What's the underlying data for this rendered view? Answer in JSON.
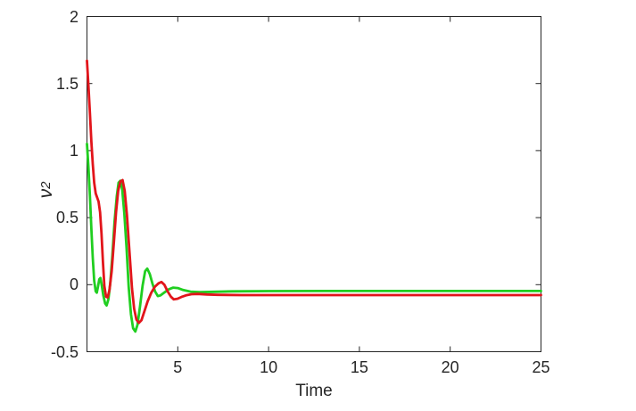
{
  "figure": {
    "background": "#ffffff",
    "axis_color": "#262626",
    "text_color": "#262626"
  },
  "chart_data": {
    "type": "line",
    "title": "",
    "xlabel": "Time",
    "ylabel": "ν",
    "ylabel_sub": "2",
    "xlim": [
      0,
      25
    ],
    "ylim": [
      -0.5,
      2
    ],
    "x_ticks": [
      5,
      10,
      15,
      20,
      25
    ],
    "y_ticks": [
      -0.5,
      0,
      0.5,
      1,
      1.5,
      2
    ],
    "grid": false,
    "legend": "none",
    "tick_style": "inward, mirrored on all four box edges",
    "series": [
      {
        "name": "green",
        "color": "#20ce20",
        "line_width": 2.8,
        "points": [
          [
            0,
            1.05
          ],
          [
            0.08,
            0.88
          ],
          [
            0.16,
            0.66
          ],
          [
            0.24,
            0.42
          ],
          [
            0.32,
            0.2
          ],
          [
            0.4,
            0.03
          ],
          [
            0.48,
            -0.05
          ],
          [
            0.54,
            -0.06
          ],
          [
            0.6,
            -0.02
          ],
          [
            0.68,
            0.04
          ],
          [
            0.74,
            0.05
          ],
          [
            0.82,
            -0.01
          ],
          [
            0.9,
            -0.08
          ],
          [
            1.0,
            -0.14
          ],
          [
            1.08,
            -0.155
          ],
          [
            1.18,
            -0.11
          ],
          [
            1.28,
            0.01
          ],
          [
            1.4,
            0.22
          ],
          [
            1.52,
            0.47
          ],
          [
            1.64,
            0.66
          ],
          [
            1.74,
            0.76
          ],
          [
            1.84,
            0.775
          ],
          [
            1.94,
            0.71
          ],
          [
            2.06,
            0.53
          ],
          [
            2.18,
            0.27
          ],
          [
            2.3,
            -0.02
          ],
          [
            2.42,
            -0.22
          ],
          [
            2.54,
            -0.325
          ],
          [
            2.66,
            -0.35
          ],
          [
            2.78,
            -0.3
          ],
          [
            2.92,
            -0.16
          ],
          [
            3.06,
            -0.01
          ],
          [
            3.2,
            0.1
          ],
          [
            3.32,
            0.12
          ],
          [
            3.46,
            0.08
          ],
          [
            3.6,
            0.01
          ],
          [
            3.75,
            -0.05
          ],
          [
            3.9,
            -0.085
          ],
          [
            4.05,
            -0.08
          ],
          [
            4.25,
            -0.06
          ],
          [
            4.5,
            -0.035
          ],
          [
            4.75,
            -0.022
          ],
          [
            5.0,
            -0.025
          ],
          [
            5.3,
            -0.04
          ],
          [
            5.7,
            -0.052
          ],
          [
            6.2,
            -0.056
          ],
          [
            7.0,
            -0.053
          ],
          [
            8.0,
            -0.05
          ],
          [
            10,
            -0.048
          ],
          [
            13,
            -0.047
          ],
          [
            17,
            -0.047
          ],
          [
            21,
            -0.047
          ],
          [
            25,
            -0.047
          ]
        ]
      },
      {
        "name": "red",
        "color": "#e2151b",
        "line_width": 2.8,
        "points": [
          [
            0,
            1.67
          ],
          [
            0.08,
            1.49
          ],
          [
            0.16,
            1.28
          ],
          [
            0.24,
            1.07
          ],
          [
            0.32,
            0.9
          ],
          [
            0.4,
            0.76
          ],
          [
            0.48,
            0.68
          ],
          [
            0.56,
            0.65
          ],
          [
            0.64,
            0.62
          ],
          [
            0.72,
            0.54
          ],
          [
            0.8,
            0.38
          ],
          [
            0.88,
            0.17
          ],
          [
            0.96,
            -0.01
          ],
          [
            1.05,
            -0.09
          ],
          [
            1.14,
            -0.095
          ],
          [
            1.24,
            -0.04
          ],
          [
            1.36,
            0.1
          ],
          [
            1.48,
            0.31
          ],
          [
            1.6,
            0.54
          ],
          [
            1.72,
            0.7
          ],
          [
            1.84,
            0.77
          ],
          [
            1.96,
            0.78
          ],
          [
            2.08,
            0.7
          ],
          [
            2.2,
            0.52
          ],
          [
            2.34,
            0.25
          ],
          [
            2.48,
            -0.03
          ],
          [
            2.6,
            -0.18
          ],
          [
            2.72,
            -0.26
          ],
          [
            2.86,
            -0.285
          ],
          [
            3.0,
            -0.265
          ],
          [
            3.16,
            -0.2
          ],
          [
            3.34,
            -0.125
          ],
          [
            3.54,
            -0.06
          ],
          [
            3.74,
            -0.015
          ],
          [
            3.94,
            0.01
          ],
          [
            4.1,
            0.02
          ],
          [
            4.26,
            0.0
          ],
          [
            4.44,
            -0.05
          ],
          [
            4.62,
            -0.09
          ],
          [
            4.78,
            -0.11
          ],
          [
            4.98,
            -0.105
          ],
          [
            5.2,
            -0.092
          ],
          [
            5.45,
            -0.08
          ],
          [
            5.75,
            -0.071
          ],
          [
            6.1,
            -0.069
          ],
          [
            6.6,
            -0.073
          ],
          [
            7.2,
            -0.076
          ],
          [
            8.5,
            -0.078
          ],
          [
            11,
            -0.078
          ],
          [
            15,
            -0.078
          ],
          [
            20,
            -0.078
          ],
          [
            25,
            -0.078
          ]
        ]
      }
    ]
  }
}
